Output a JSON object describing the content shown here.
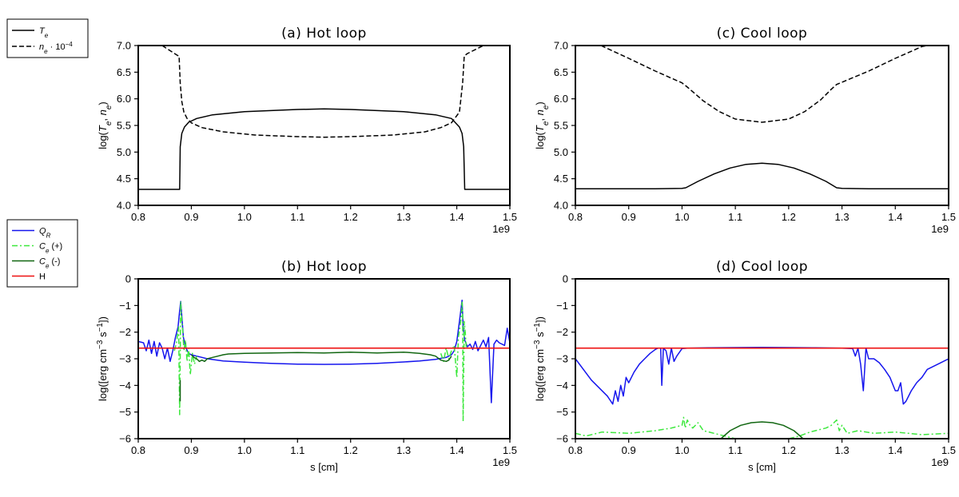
{
  "figure": {
    "legend_top": {
      "entries": [
        {
          "symbol": "T",
          "sub": "e",
          "sup": "",
          "suffix": "",
          "color": "#000000",
          "dash": "solid"
        },
        {
          "symbol": "n",
          "sub": "e",
          "sup": "−4",
          "suffix": " · 10",
          "color": "#000000",
          "dash": "dashed"
        }
      ]
    },
    "legend_bottom": {
      "entries": [
        {
          "symbol": "Q",
          "sub": "R",
          "sup": "",
          "suffix": "",
          "color": "#1515ee",
          "dash": "solid"
        },
        {
          "symbol": "C",
          "sub": "e",
          "sup": "",
          "suffix": " (+)",
          "color": "#3de83d",
          "dash": "dashdot"
        },
        {
          "symbol": "C",
          "sub": "e",
          "sup": "",
          "suffix": " (-)",
          "color": "#116611",
          "dash": "solid"
        },
        {
          "symbol": "H",
          "sub": "",
          "sup": "",
          "suffix": "",
          "color": "#ee1111",
          "dash": "solid"
        }
      ]
    }
  },
  "chart_data": [
    {
      "id": "a",
      "type": "line",
      "title": "(a) Hot loop",
      "xlabel": "",
      "ylabel": "log(Te, ne)",
      "xlim": [
        0.8,
        1.5
      ],
      "ylim": [
        4.0,
        7.0
      ],
      "x_ticks": [
        "0.8",
        "0.9",
        "1.0",
        "1.1",
        "1.2",
        "1.3",
        "1.4",
        "1.5"
      ],
      "y_ticks": [
        "4.0",
        "4.5",
        "5.0",
        "5.5",
        "6.0",
        "6.5",
        "7.0"
      ],
      "x_offset_label": "1e9",
      "series": [
        {
          "name": "Te",
          "color": "#000000",
          "dash": "solid",
          "x": [
            0.8,
            0.87,
            0.878,
            0.879,
            0.882,
            0.887,
            0.895,
            0.91,
            0.94,
            1.0,
            1.1,
            1.15,
            1.2,
            1.3,
            1.36,
            1.39,
            1.405,
            1.41,
            1.413,
            1.415,
            1.5
          ],
          "y": [
            4.3,
            4.3,
            4.3,
            5.1,
            5.35,
            5.47,
            5.56,
            5.63,
            5.7,
            5.76,
            5.8,
            5.81,
            5.8,
            5.76,
            5.7,
            5.63,
            5.47,
            5.35,
            5.1,
            4.3,
            4.3
          ]
        },
        {
          "name": "ne",
          "color": "#000000",
          "dash": "dashed",
          "x": [
            0.845,
            0.873,
            0.877,
            0.879,
            0.882,
            0.886,
            0.892,
            0.9,
            0.92,
            0.96,
            1.02,
            1.1,
            1.15,
            1.2,
            1.28,
            1.34,
            1.37,
            1.39,
            1.405,
            1.411,
            1.414,
            1.416,
            1.42,
            1.45,
            1.457
          ],
          "y": [
            7.0,
            6.82,
            6.8,
            6.3,
            5.95,
            5.75,
            5.63,
            5.55,
            5.46,
            5.38,
            5.32,
            5.29,
            5.28,
            5.29,
            5.32,
            5.38,
            5.46,
            5.55,
            5.75,
            6.3,
            6.8,
            6.82,
            6.85,
            7.0,
            7.0
          ]
        }
      ]
    },
    {
      "id": "c",
      "type": "line",
      "title": "(c) Cool loop",
      "xlabel": "",
      "ylabel": "log(Te, ne)",
      "xlim": [
        0.8,
        1.5
      ],
      "ylim": [
        4.0,
        7.0
      ],
      "x_ticks": [
        "0.8",
        "0.9",
        "1.0",
        "1.1",
        "1.2",
        "1.3",
        "1.4",
        "1.5"
      ],
      "y_ticks": [
        "4.0",
        "4.5",
        "5.0",
        "5.5",
        "6.0",
        "6.5",
        "7.0"
      ],
      "x_offset_label": "1e9",
      "series": [
        {
          "name": "Te",
          "color": "#000000",
          "dash": "solid",
          "x": [
            0.8,
            0.9,
            0.95,
            1.0,
            1.007,
            1.03,
            1.06,
            1.09,
            1.12,
            1.15,
            1.18,
            1.21,
            1.24,
            1.27,
            1.29,
            1.3,
            1.35,
            1.4,
            1.45,
            1.5
          ],
          "y": [
            4.31,
            4.31,
            4.31,
            4.32,
            4.33,
            4.45,
            4.59,
            4.7,
            4.77,
            4.79,
            4.77,
            4.7,
            4.59,
            4.45,
            4.33,
            4.32,
            4.31,
            4.31,
            4.31,
            4.31
          ]
        },
        {
          "name": "ne",
          "color": "#000000",
          "dash": "dashed",
          "x": [
            0.848,
            0.9,
            0.95,
            1.0,
            1.01,
            1.04,
            1.07,
            1.1,
            1.15,
            1.2,
            1.23,
            1.26,
            1.28,
            1.29,
            1.35,
            1.4,
            1.45,
            1.46
          ],
          "y": [
            7.0,
            6.76,
            6.52,
            6.3,
            6.22,
            5.96,
            5.76,
            5.62,
            5.56,
            5.62,
            5.76,
            5.98,
            6.18,
            6.27,
            6.52,
            6.76,
            6.98,
            7.0
          ]
        }
      ]
    },
    {
      "id": "b",
      "type": "line",
      "title": "(b) Hot loop",
      "xlabel": "s [cm]",
      "ylabel": "log([erg cm−3 s−1])",
      "xlim": [
        0.8,
        1.5
      ],
      "ylim": [
        -6,
        0
      ],
      "x_ticks": [
        "0.8",
        "0.9",
        "1.0",
        "1.1",
        "1.2",
        "1.3",
        "1.4",
        "1.5"
      ],
      "y_ticks": [
        "−6",
        "−5",
        "−4",
        "−3",
        "−2",
        "−1",
        "0"
      ],
      "x_offset_label": "1e9",
      "series": [
        {
          "name": "QR",
          "color": "#1515ee",
          "dash": "solid",
          "x": [
            0.8,
            0.81,
            0.815,
            0.82,
            0.825,
            0.83,
            0.835,
            0.84,
            0.845,
            0.85,
            0.855,
            0.86,
            0.865,
            0.87,
            0.875,
            0.878,
            0.88,
            0.882,
            0.885,
            0.89,
            0.895,
            0.9,
            0.91,
            0.93,
            0.96,
            1.0,
            1.05,
            1.1,
            1.15,
            1.2,
            1.25,
            1.3,
            1.33,
            1.36,
            1.38,
            1.39,
            1.395,
            1.4,
            1.405,
            1.41,
            1.412,
            1.415,
            1.42,
            1.425,
            1.43,
            1.435,
            1.44,
            1.445,
            1.45,
            1.455,
            1.46,
            1.465,
            1.47,
            1.475,
            1.48,
            1.49,
            1.495,
            1.5
          ],
          "y": [
            -2.35,
            -2.4,
            -2.7,
            -2.3,
            -2.8,
            -2.35,
            -2.9,
            -2.4,
            -2.6,
            -3.0,
            -2.6,
            -3.1,
            -2.7,
            -2.2,
            -1.8,
            -1.2,
            -0.85,
            -1.4,
            -2.2,
            -2.6,
            -2.8,
            -2.85,
            -2.9,
            -3.0,
            -3.08,
            -3.13,
            -3.17,
            -3.2,
            -3.21,
            -3.2,
            -3.17,
            -3.12,
            -3.08,
            -3.02,
            -2.95,
            -2.85,
            -2.7,
            -2.35,
            -1.6,
            -0.8,
            -1.8,
            -2.3,
            -2.55,
            -2.45,
            -2.65,
            -2.35,
            -2.7,
            -2.5,
            -2.3,
            -2.55,
            -2.2,
            -4.65,
            -2.45,
            -2.3,
            -2.4,
            -2.5,
            -1.85,
            -2.4
          ]
        },
        {
          "name": "Ce (+)",
          "color": "#3de83d",
          "dash": "dashdot",
          "x": [
            0.868,
            0.872,
            0.876,
            0.878,
            0.879,
            0.88,
            0.881,
            0.882,
            0.884,
            0.886,
            0.889,
            0.892,
            0.895,
            0.898,
            0.902,
            0.906,
            0.91
          ],
          "y": [
            -2.7,
            -2.4,
            -1.8,
            -5.1,
            -3.0,
            -0.85,
            -1.3,
            -1.6,
            -2.0,
            -2.7,
            -2.3,
            -3.1,
            -2.6,
            -3.6,
            -2.8,
            -3.2,
            -2.9
          ]
        },
        {
          "name": "Ce (+) right",
          "color": "#3de83d",
          "dash": "dashdot",
          "x": [
            1.37,
            1.375,
            1.38,
            1.385,
            1.39,
            1.395,
            1.4,
            1.403,
            1.406,
            1.408,
            1.41,
            1.411,
            1.412,
            1.414,
            1.416,
            1.418
          ],
          "y": [
            -2.8,
            -3.1,
            -2.6,
            -3.0,
            -2.7,
            -2.5,
            -3.7,
            -2.2,
            -1.8,
            -1.5,
            -0.85,
            -1.3,
            -5.35,
            -1.6,
            -2.0,
            -2.6
          ]
        },
        {
          "name": "Ce (-)",
          "color": "#116611",
          "dash": "solid",
          "x": [
            0.9,
            0.905,
            0.91,
            0.915,
            0.92,
            0.925,
            0.93,
            0.94,
            0.95,
            0.96,
            0.97,
            1.0,
            1.05,
            1.1,
            1.15,
            1.2,
            1.25,
            1.3,
            1.33,
            1.35,
            1.36,
            1.37,
            1.38,
            1.385,
            1.39
          ],
          "y": [
            -2.85,
            -2.95,
            -3.0,
            -3.1,
            -3.05,
            -3.1,
            -3.0,
            -2.95,
            -2.9,
            -2.85,
            -2.82,
            -2.8,
            -2.78,
            -2.77,
            -2.78,
            -2.75,
            -2.78,
            -2.75,
            -2.8,
            -2.85,
            -2.9,
            -3.05,
            -3.1,
            -3.05,
            -2.9
          ]
        },
        {
          "name": "Ce (-) spike",
          "color": "#116611",
          "dash": "solid",
          "x": [
            0.879,
            0.879
          ],
          "y": [
            -3.8,
            -4.6
          ]
        },
        {
          "name": "H",
          "color": "#ee1111",
          "dash": "solid",
          "x": [
            0.8,
            1.5
          ],
          "y": [
            -2.6,
            -2.6
          ]
        }
      ]
    },
    {
      "id": "d",
      "type": "line",
      "title": "(d) Cool loop",
      "xlabel": "s [cm]",
      "ylabel": "log([erg cm−3 s−1])",
      "xlim": [
        0.8,
        1.5
      ],
      "ylim": [
        -6,
        0
      ],
      "x_ticks": [
        "0.8",
        "0.9",
        "1.0",
        "1.1",
        "1.2",
        "1.3",
        "1.4",
        "1.5"
      ],
      "y_ticks": [
        "−6",
        "−5",
        "−4",
        "−3",
        "−2",
        "−1",
        "0"
      ],
      "x_offset_label": "1e9",
      "series": [
        {
          "name": "QR",
          "color": "#1515ee",
          "dash": "solid",
          "x": [
            0.8,
            0.83,
            0.86,
            0.87,
            0.875,
            0.88,
            0.885,
            0.89,
            0.895,
            0.9,
            0.91,
            0.92,
            0.93,
            0.94,
            0.95,
            0.955,
            0.96,
            0.962,
            0.965,
            0.97,
            0.975,
            0.98,
            0.985,
            0.99,
            1.0,
            1.01,
            1.05,
            1.1,
            1.15,
            1.2,
            1.25,
            1.3,
            1.32,
            1.325,
            1.33,
            1.335,
            1.34,
            1.345,
            1.35,
            1.36,
            1.37,
            1.38,
            1.39,
            1.4,
            1.405,
            1.41,
            1.415,
            1.42,
            1.43,
            1.44,
            1.45,
            1.46,
            1.48,
            1.5
          ],
          "y": [
            -3.0,
            -3.8,
            -4.4,
            -4.7,
            -4.2,
            -4.6,
            -4.0,
            -4.4,
            -3.7,
            -3.9,
            -3.5,
            -3.2,
            -3.0,
            -2.8,
            -2.65,
            -2.6,
            -2.6,
            -4.0,
            -2.6,
            -2.7,
            -3.2,
            -2.6,
            -3.1,
            -2.9,
            -2.62,
            -2.6,
            -2.59,
            -2.58,
            -2.57,
            -2.58,
            -2.59,
            -2.6,
            -2.62,
            -2.9,
            -2.6,
            -3.2,
            -4.2,
            -2.6,
            -3.0,
            -3.0,
            -3.15,
            -3.4,
            -3.7,
            -4.2,
            -4.2,
            -3.9,
            -4.7,
            -4.6,
            -4.2,
            -3.9,
            -3.7,
            -3.4,
            -3.2,
            -3.0
          ]
        },
        {
          "name": "Ce (+)",
          "color": "#3de83d",
          "dash": "dashdot",
          "x": [
            0.8,
            0.82,
            0.85,
            0.9,
            0.95,
            0.98,
            1.0,
            1.003,
            1.006,
            1.01,
            1.015,
            1.02,
            1.03,
            1.04,
            1.06,
            1.08,
            1.1
          ],
          "y": [
            -5.8,
            -5.9,
            -5.75,
            -5.8,
            -5.7,
            -5.6,
            -5.5,
            -5.2,
            -5.6,
            -5.3,
            -5.5,
            -5.6,
            -5.4,
            -5.7,
            -5.8,
            -5.9,
            -6.0
          ]
        },
        {
          "name": "Ce (+) right",
          "color": "#3de83d",
          "dash": "dashdot",
          "x": [
            1.2,
            1.22,
            1.24,
            1.26,
            1.27,
            1.28,
            1.29,
            1.295,
            1.3,
            1.31,
            1.33,
            1.36,
            1.4,
            1.45,
            1.5
          ],
          "y": [
            -6.0,
            -5.9,
            -5.75,
            -5.65,
            -5.6,
            -5.5,
            -5.3,
            -5.7,
            -5.5,
            -5.8,
            -5.7,
            -5.8,
            -5.75,
            -5.85,
            -5.8
          ]
        },
        {
          "name": "Ce (-)",
          "color": "#116611",
          "dash": "solid",
          "x": [
            1.073,
            1.09,
            1.11,
            1.13,
            1.15,
            1.17,
            1.19,
            1.21,
            1.227
          ],
          "y": [
            -6.0,
            -5.7,
            -5.5,
            -5.4,
            -5.37,
            -5.4,
            -5.5,
            -5.7,
            -6.0
          ]
        },
        {
          "name": "H",
          "color": "#ee1111",
          "dash": "solid",
          "x": [
            0.8,
            1.5
          ],
          "y": [
            -2.6,
            -2.6
          ]
        }
      ]
    }
  ]
}
